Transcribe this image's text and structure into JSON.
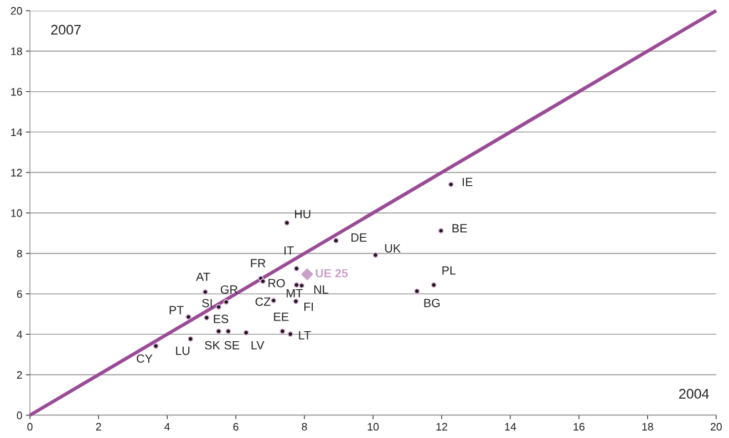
{
  "chart_data": {
    "type": "scatter",
    "xlabel": "2004",
    "ylabel": "2007",
    "xlim": [
      0,
      20
    ],
    "ylim": [
      0,
      20
    ],
    "xticks": [
      0,
      2,
      4,
      6,
      8,
      10,
      12,
      14,
      16,
      18,
      20
    ],
    "yticks": [
      0,
      2,
      4,
      6,
      8,
      10,
      12,
      14,
      16,
      18,
      20
    ],
    "grid": "y",
    "marker": "circle",
    "series": [
      {
        "type": "line",
        "color": "#9a4b96",
        "x": [
          0,
          20
        ],
        "values": [
          0,
          20
        ],
        "marker": "none"
      },
      {
        "color": "#1a1a1a",
        "x": [
          12.27,
          11.98,
          10.07,
          11.77,
          11.28,
          8.92,
          7.49,
          7.77,
          7.77,
          7.92,
          7.75,
          7.1,
          6.73,
          6.79,
          5.11,
          5.72,
          5.5,
          4.62,
          5.15,
          5.5,
          5.78,
          6.3,
          7.36,
          7.59,
          4.68,
          3.67
        ],
        "values": [
          11.41,
          9.12,
          7.92,
          6.44,
          6.13,
          8.63,
          9.51,
          7.25,
          6.44,
          6.41,
          5.63,
          5.67,
          6.76,
          6.62,
          6.09,
          5.6,
          5.35,
          4.86,
          4.82,
          4.15,
          4.15,
          4.08,
          4.15,
          4.01,
          3.77,
          3.42
        ]
      },
      {
        "type": "scatter",
        "name": "UE 25",
        "color": "#c9a0c8",
        "marker": "diamond",
        "x": [
          8.08
        ],
        "values": [
          6.97
        ]
      }
    ],
    "annotations": [
      {
        "text": "IE",
        "x": 12.27,
        "y": 11.41
      },
      {
        "text": "BE",
        "x": 11.98,
        "y": 9.12
      },
      {
        "text": "UK",
        "x": 10.07,
        "y": 7.92
      },
      {
        "text": "PL",
        "x": 11.77,
        "y": 6.44
      },
      {
        "text": "BG",
        "x": 11.28,
        "y": 6.13
      },
      {
        "text": "DE",
        "x": 8.92,
        "y": 8.63
      },
      {
        "text": "HU",
        "x": 7.49,
        "y": 9.51
      },
      {
        "text": "IT",
        "x": 7.77,
        "y": 7.25
      },
      {
        "text": "MT",
        "x": 7.77,
        "y": 6.44
      },
      {
        "text": "NL",
        "x": 7.92,
        "y": 6.41
      },
      {
        "text": "FI",
        "x": 7.75,
        "y": 5.63
      },
      {
        "text": "CZ",
        "x": 7.1,
        "y": 5.67
      },
      {
        "text": "FR",
        "x": 6.73,
        "y": 6.76
      },
      {
        "text": "RO",
        "x": 6.79,
        "y": 6.62
      },
      {
        "text": "AT",
        "x": 5.11,
        "y": 6.09
      },
      {
        "text": "GR",
        "x": 5.72,
        "y": 5.6
      },
      {
        "text": "SI",
        "x": 5.5,
        "y": 5.35
      },
      {
        "text": "PT",
        "x": 4.62,
        "y": 4.86
      },
      {
        "text": "ES",
        "x": 5.15,
        "y": 4.82
      },
      {
        "text": "SK",
        "x": 5.5,
        "y": 4.15
      },
      {
        "text": "SE",
        "x": 5.78,
        "y": 4.15
      },
      {
        "text": "LV",
        "x": 6.3,
        "y": 4.08
      },
      {
        "text": "EE",
        "x": 7.36,
        "y": 4.15
      },
      {
        "text": "LT",
        "x": 7.59,
        "y": 4.01
      },
      {
        "text": "LU",
        "x": 4.68,
        "y": 3.77
      },
      {
        "text": "CY",
        "x": 3.67,
        "y": 3.42
      }
    ]
  }
}
